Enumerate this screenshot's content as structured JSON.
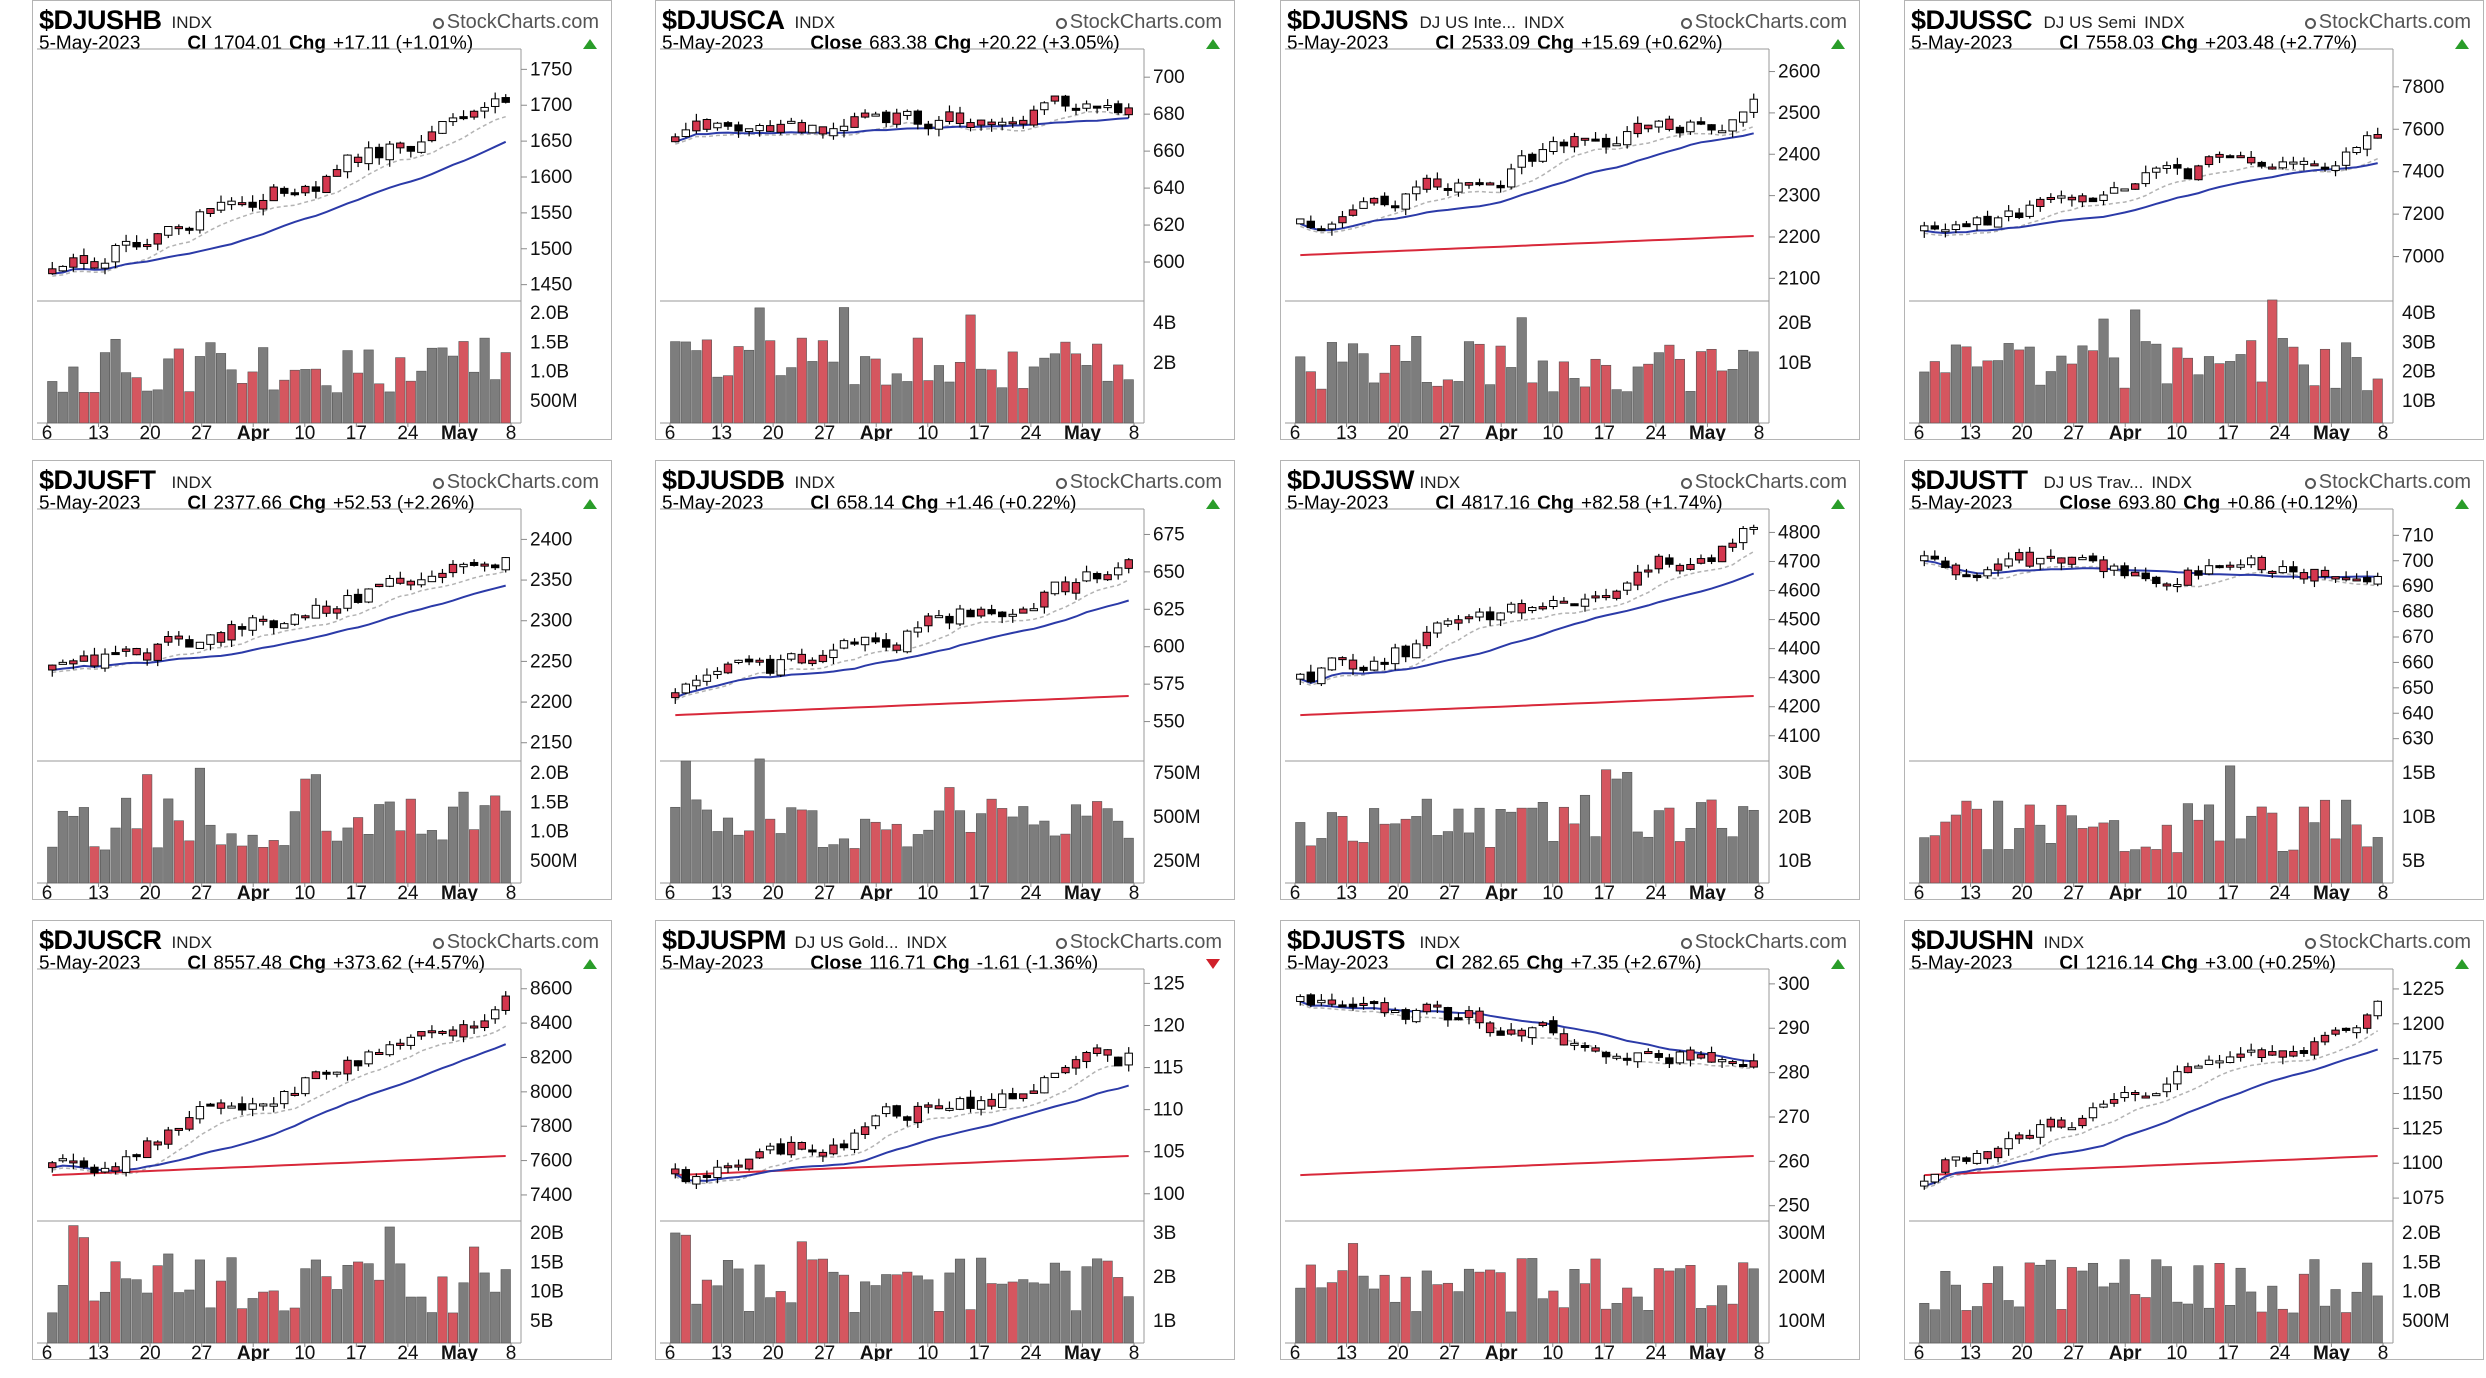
{
  "brand": "StockCharts.com",
  "colors": {
    "up_bar": "#d4364e",
    "down_bar": "#000000",
    "vol_red": "#d5565f",
    "vol_gray": "#7d7d7d",
    "ma50": "#2b3aa8",
    "ma200": "#d8283a",
    "ma20": "#b3b3b3",
    "up_tri": "#2a9d2a",
    "down_tri": "#d0202a"
  },
  "x_tick_labels": [
    "6",
    "13",
    "20",
    "27",
    "Apr",
    "10",
    "17",
    "24",
    "May",
    "8"
  ],
  "panels": [
    {
      "symbol": "$DJUSHB",
      "name": "",
      "type": "INDX",
      "date": "5-May-2023",
      "close_label": "Cl",
      "close": "1704.01",
      "chg_label": "Chg",
      "chg": "+17.11 (+1.01%)",
      "dir": "up",
      "y_ticks": [
        "1750",
        "1700",
        "1650",
        "1600",
        "1550",
        "1500",
        "1450"
      ],
      "vol_ticks": [
        "2.0B",
        "1.5B",
        "1.0B",
        "500M"
      ],
      "chart_data": {
        "type": "candlestick",
        "y_range": [
          1430,
          1770
        ],
        "start": 1480,
        "end": 1704.01,
        "has_ma50": true,
        "has_ma200": false
      }
    },
    {
      "symbol": "$DJUSCA",
      "name": "",
      "type": "INDX",
      "date": "5-May-2023",
      "close_label": "Close",
      "close": "683.38",
      "chg_label": "Chg",
      "chg": "+20.22 (+3.05%)",
      "dir": "up",
      "y_ticks": [
        "700",
        "680",
        "660",
        "640",
        "620",
        "600"
      ],
      "vol_ticks": [
        "4B",
        "2B"
      ],
      "chart_data": {
        "type": "candlestick",
        "y_range": [
          580,
          712
        ],
        "start": 670,
        "end": 683.38,
        "has_ma50": true,
        "has_ma200": false
      }
    },
    {
      "symbol": "$DJUSNS",
      "name": "DJ US Inte...",
      "type": "INDX",
      "date": "5-May-2023",
      "close_label": "Cl",
      "close": "2533.09",
      "chg_label": "Chg",
      "chg": "+15.69 (+0.62%)",
      "dir": "up",
      "y_ticks": [
        "2600",
        "2500",
        "2400",
        "2300",
        "2200",
        "2100"
      ],
      "vol_ticks": [
        "20B",
        "10B"
      ],
      "chart_data": {
        "type": "candlestick",
        "y_range": [
          2050,
          2640
        ],
        "start": 2250,
        "end": 2533.09,
        "has_ma50": true,
        "has_ma200": true
      }
    },
    {
      "symbol": "$DJUSSC",
      "name": "DJ US Semi",
      "type": "INDX",
      "date": "5-May-2023",
      "close_label": "Cl",
      "close": "7558.03",
      "chg_label": "Chg",
      "chg": "+203.48 (+2.77%)",
      "dir": "up",
      "y_ticks": [
        "7800",
        "7600",
        "7400",
        "7200",
        "7000"
      ],
      "vol_ticks": [
        "40B",
        "30B",
        "20B",
        "10B"
      ],
      "chart_data": {
        "type": "candlestick",
        "y_range": [
          6800,
          7950
        ],
        "start": 7150,
        "end": 7558.03,
        "has_ma50": true,
        "has_ma200": false
      }
    },
    {
      "symbol": "$DJUSFT",
      "name": "",
      "type": "INDX",
      "date": "5-May-2023",
      "close_label": "Cl",
      "close": "2377.66",
      "chg_label": "Chg",
      "chg": "+52.53 (+2.26%)",
      "dir": "up",
      "y_ticks": [
        "2400",
        "2350",
        "2300",
        "2250",
        "2200",
        "2150"
      ],
      "vol_ticks": [
        "2.0B",
        "1.5B",
        "1.0B",
        "500M"
      ],
      "chart_data": {
        "type": "candlestick",
        "y_range": [
          2130,
          2430
        ],
        "start": 2245,
        "end": 2377.66,
        "has_ma50": true,
        "has_ma200": false
      }
    },
    {
      "symbol": "$DJUSDB",
      "name": "",
      "type": "INDX",
      "date": "5-May-2023",
      "close_label": "Cl",
      "close": "658.14",
      "chg_label": "Chg",
      "chg": "+1.46 (+0.22%)",
      "dir": "up",
      "y_ticks": [
        "675",
        "650",
        "625",
        "600",
        "575",
        "550"
      ],
      "vol_ticks": [
        "750M",
        "500M",
        "250M"
      ],
      "chart_data": {
        "type": "candlestick",
        "y_range": [
          525,
          688
        ],
        "start": 568,
        "end": 658.14,
        "has_ma50": true,
        "has_ma200": true
      }
    },
    {
      "symbol": "$DJUSSW",
      "name": "",
      "type": "INDX",
      "date": "5-May-2023",
      "close_label": "Cl",
      "close": "4817.16",
      "chg_label": "Chg",
      "chg": "+82.58 (+1.74%)",
      "dir": "up",
      "y_ticks": [
        "4800",
        "4700",
        "4600",
        "4500",
        "4400",
        "4300",
        "4200",
        "4100"
      ],
      "vol_ticks": [
        "30B",
        "20B",
        "10B"
      ],
      "chart_data": {
        "type": "candlestick",
        "y_range": [
          4020,
          4860
        ],
        "start": 4300,
        "end": 4817.16,
        "has_ma50": true,
        "has_ma200": true
      }
    },
    {
      "symbol": "$DJUSTT",
      "name": "DJ US Trav...",
      "type": "INDX",
      "date": "5-May-2023",
      "close_label": "Close",
      "close": "693.80",
      "chg_label": "Chg",
      "chg": "+0.86 (+0.12%)",
      "dir": "up",
      "y_ticks": [
        "710",
        "700",
        "690",
        "680",
        "670",
        "660",
        "650",
        "640",
        "630"
      ],
      "vol_ticks": [
        "15B",
        "10B",
        "5B"
      ],
      "chart_data": {
        "type": "candlestick",
        "y_range": [
          622,
          718
        ],
        "start": 700,
        "end": 693.8,
        "has_ma50": true,
        "has_ma200": false
      }
    },
    {
      "symbol": "$DJUSCR",
      "name": "",
      "type": "INDX",
      "date": "5-May-2023",
      "close_label": "Cl",
      "close": "8557.48",
      "chg_label": "Chg",
      "chg": "+373.62 (+4.57%)",
      "dir": "up",
      "y_ticks": [
        "8600",
        "8400",
        "8200",
        "8000",
        "7800",
        "7600",
        "7400"
      ],
      "vol_ticks": [
        "20B",
        "15B",
        "10B",
        "5B"
      ],
      "chart_data": {
        "type": "candlestick",
        "y_range": [
          7260,
          8680
        ],
        "start": 7550,
        "end": 8557.48,
        "has_ma50": true,
        "has_ma200": true
      }
    },
    {
      "symbol": "$DJUSPM",
      "name": "DJ US Gold...",
      "type": "INDX",
      "date": "5-May-2023",
      "close_label": "Close",
      "close": "116.71",
      "chg_label": "Chg",
      "chg": "-1.61 (-1.36%)",
      "dir": "down",
      "y_ticks": [
        "125",
        "120",
        "115",
        "110",
        "105",
        "100"
      ],
      "vol_ticks": [
        "3B",
        "2B",
        "1B"
      ],
      "chart_data": {
        "type": "candlestick",
        "y_range": [
          97,
          126
        ],
        "start": 102,
        "end": 116.71,
        "has_ma50": true,
        "has_ma200": true
      }
    },
    {
      "symbol": "$DJUSTS",
      "name": "",
      "type": "INDX",
      "date": "5-May-2023",
      "close_label": "Cl",
      "close": "282.65",
      "chg_label": "Chg",
      "chg": "+7.35 (+2.67%)",
      "dir": "up",
      "y_ticks": [
        "300",
        "290",
        "280",
        "270",
        "260",
        "250"
      ],
      "vol_ticks": [
        "300M",
        "200M",
        "100M"
      ],
      "chart_data": {
        "type": "candlestick",
        "y_range": [
          247,
          302
        ],
        "start": 295,
        "end": 282.65,
        "has_ma50": true,
        "has_ma200": true
      }
    },
    {
      "symbol": "$DJUSHN",
      "name": "",
      "type": "INDX",
      "date": "5-May-2023",
      "close_label": "Cl",
      "close": "1216.14",
      "chg_label": "Chg",
      "chg": "+3.00 (+0.25%)",
      "dir": "up",
      "y_ticks": [
        "1225",
        "1200",
        "1175",
        "1150",
        "1125",
        "1100",
        "1075"
      ],
      "vol_ticks": [
        "2.0B",
        "1.5B",
        "1.0B",
        "500M"
      ],
      "chart_data": {
        "type": "candlestick",
        "y_range": [
          1060,
          1235
        ],
        "start": 1095,
        "end": 1216.14,
        "has_ma50": true,
        "has_ma200": true
      }
    }
  ]
}
